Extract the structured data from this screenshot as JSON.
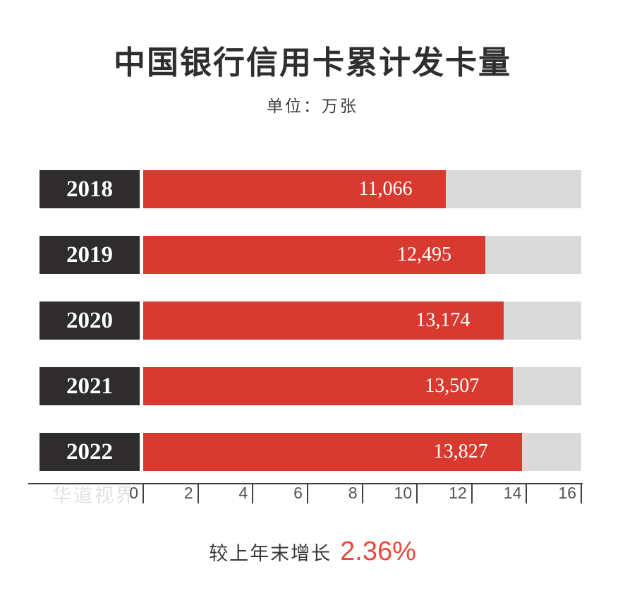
{
  "page": {
    "title": "中国银行信用卡累计发卡量",
    "subtitle": "单位：万张",
    "watermark": "华道视界"
  },
  "chart_data": {
    "type": "bar",
    "orientation": "horizontal",
    "title": "中国银行信用卡累计发卡量",
    "unit_label": "单位：万张",
    "categories": [
      "2018",
      "2019",
      "2020",
      "2021",
      "2022"
    ],
    "values": [
      11066,
      12495,
      13174,
      13507,
      13827
    ],
    "value_labels": [
      "11,066",
      "12,495",
      "13,174",
      "13,507",
      "13,827"
    ],
    "xlim": [
      0,
      16
    ],
    "x_ticks": [
      0,
      2,
      4,
      6,
      8,
      10,
      12,
      14,
      16
    ],
    "grid": false,
    "legend": false,
    "colors": {
      "bar": "#d93a30",
      "track": "#d9dad9",
      "year_box": "#2e2c2c",
      "year_text": "#ffffff",
      "value_text": "#ffffff",
      "axis": "#45403d",
      "tick_label": "#57514d",
      "title": "#2e2e2e",
      "watermark": "#e3e1e0"
    }
  },
  "footer": {
    "label": "较上年末增长",
    "value": "2.36%",
    "value_color": "#e84a3b"
  }
}
